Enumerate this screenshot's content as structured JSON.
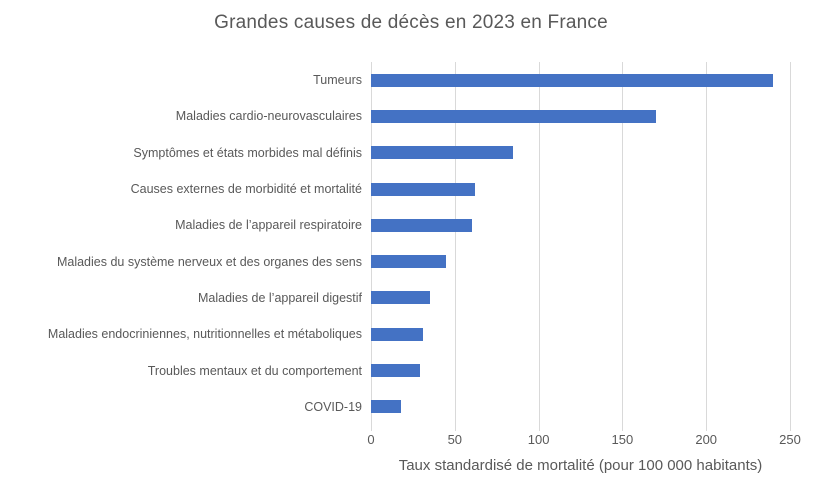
{
  "colors": {
    "bar": "#4472C4",
    "gridline": "#D9D9D9",
    "text": "#595959",
    "background": "#FFFFFF"
  },
  "chart_data": {
    "type": "bar",
    "orientation": "horizontal",
    "title": "Grandes causes de décès en 2023 en France",
    "categories": [
      "Tumeurs",
      "Maladies cardio-neurovasculaires",
      "Symptômes et états morbides mal définis",
      "Causes externes de morbidité et mortalité",
      "Maladies de l’appareil respiratoire",
      "Maladies du système nerveux et des organes des sens",
      "Maladies de l’appareil digestif",
      "Maladies endocriniennes, nutritionnelles et métaboliques",
      "Troubles mentaux et du comportement",
      "COVID-19"
    ],
    "values": [
      240,
      170,
      85,
      62,
      60,
      45,
      35,
      31,
      29,
      18
    ],
    "xlabel": "Taux standardisé de mortalité (pour 100 000 habitants)",
    "ylabel": "",
    "xlim": [
      0,
      250
    ],
    "xticks": [
      0,
      50,
      100,
      150,
      200,
      250
    ],
    "grid": true,
    "legend": false
  }
}
